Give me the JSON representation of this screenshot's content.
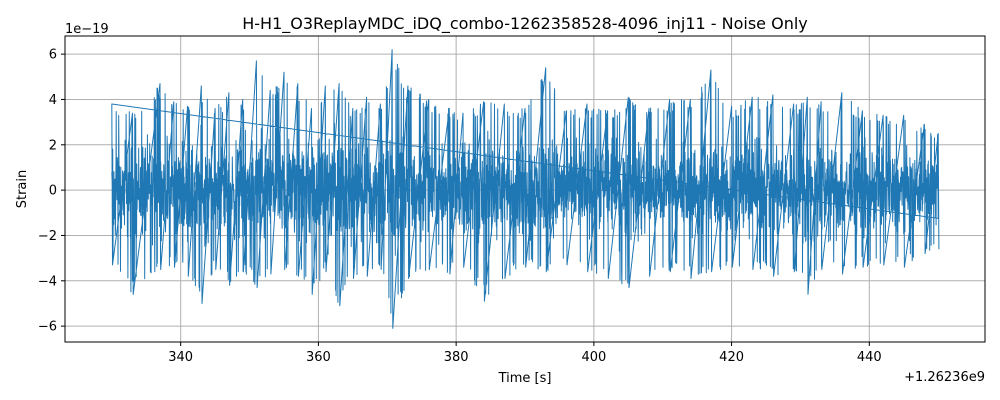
{
  "chart_data": {
    "type": "line",
    "title": "H-H1_O3ReplayMDC_iDQ_combo-1262358528-4096_inj11 - Noise Only",
    "xlabel": "Time [s]",
    "ylabel": "Strain",
    "x_offset_label": "+1.26236e9",
    "y_scale_label": "1e−19",
    "xlim": [
      323.2,
      456.8
    ],
    "ylim": [
      -6.7,
      6.8
    ],
    "x_ticks": [
      340,
      360,
      380,
      400,
      420,
      440
    ],
    "x_tick_labels": [
      "340",
      "360",
      "380",
      "400",
      "420",
      "440"
    ],
    "y_ticks": [
      -6,
      -4,
      -2,
      0,
      2,
      4,
      6
    ],
    "y_tick_labels": [
      "−6",
      "−4",
      "−2",
      "0",
      "2",
      "4",
      "6"
    ],
    "grid": true,
    "series": [
      {
        "color": "#1f77b4",
        "x_range": [
          330,
          450
        ],
        "envelope": [
          [
            330.0,
            3.8,
            -3.3
          ],
          [
            333.0,
            3.4,
            -4.6
          ],
          [
            337.0,
            4.7,
            -3.5
          ],
          [
            339.0,
            3.9,
            -3.4
          ],
          [
            341.0,
            3.7,
            -3.8
          ],
          [
            343.0,
            4.6,
            -5.0
          ],
          [
            345.0,
            3.6,
            -3.5
          ],
          [
            347.0,
            4.3,
            -4.2
          ],
          [
            349.0,
            4.0,
            -3.6
          ],
          [
            351.0,
            5.7,
            -4.3
          ],
          [
            353.0,
            4.4,
            -3.7
          ],
          [
            355.0,
            5.2,
            -3.5
          ],
          [
            357.0,
            4.7,
            -3.8
          ],
          [
            359.0,
            3.6,
            -4.6
          ],
          [
            361.0,
            4.6,
            -3.6
          ],
          [
            363.0,
            4.7,
            -5.1
          ],
          [
            365.0,
            3.6,
            -3.9
          ],
          [
            367.0,
            4.1,
            -3.8
          ],
          [
            369.0,
            3.8,
            -3.5
          ],
          [
            370.7,
            6.2,
            -6.1
          ],
          [
            373.0,
            4.6,
            -3.9
          ],
          [
            376.0,
            4.0,
            -3.5
          ],
          [
            379.0,
            3.6,
            -3.7
          ],
          [
            381.0,
            3.4,
            -3.4
          ],
          [
            384.0,
            3.9,
            -4.9
          ],
          [
            387.0,
            3.8,
            -3.9
          ],
          [
            390.0,
            3.6,
            -3.4
          ],
          [
            393.0,
            5.4,
            -3.6
          ],
          [
            396.0,
            3.5,
            -3.3
          ],
          [
            399.0,
            3.8,
            -3.6
          ],
          [
            402.0,
            3.5,
            -3.9
          ],
          [
            405.0,
            4.1,
            -4.3
          ],
          [
            408.0,
            3.6,
            -3.8
          ],
          [
            411.0,
            4.0,
            -3.6
          ],
          [
            414.0,
            4.0,
            -3.9
          ],
          [
            417.0,
            5.3,
            -3.6
          ],
          [
            420.0,
            3.7,
            -3.4
          ],
          [
            423.0,
            4.1,
            -3.5
          ],
          [
            426.0,
            4.2,
            -3.8
          ],
          [
            429.0,
            3.8,
            -3.6
          ],
          [
            431.0,
            4.1,
            -4.6
          ],
          [
            433.0,
            3.9,
            -3.5
          ],
          [
            436.0,
            4.3,
            -3.7
          ],
          [
            439.0,
            3.5,
            -3.4
          ],
          [
            442.0,
            3.3,
            -3.3
          ],
          [
            445.0,
            3.3,
            -3.4
          ],
          [
            448.0,
            2.9,
            -2.8
          ],
          [
            450.0,
            2.5,
            -2.6
          ]
        ]
      }
    ]
  }
}
